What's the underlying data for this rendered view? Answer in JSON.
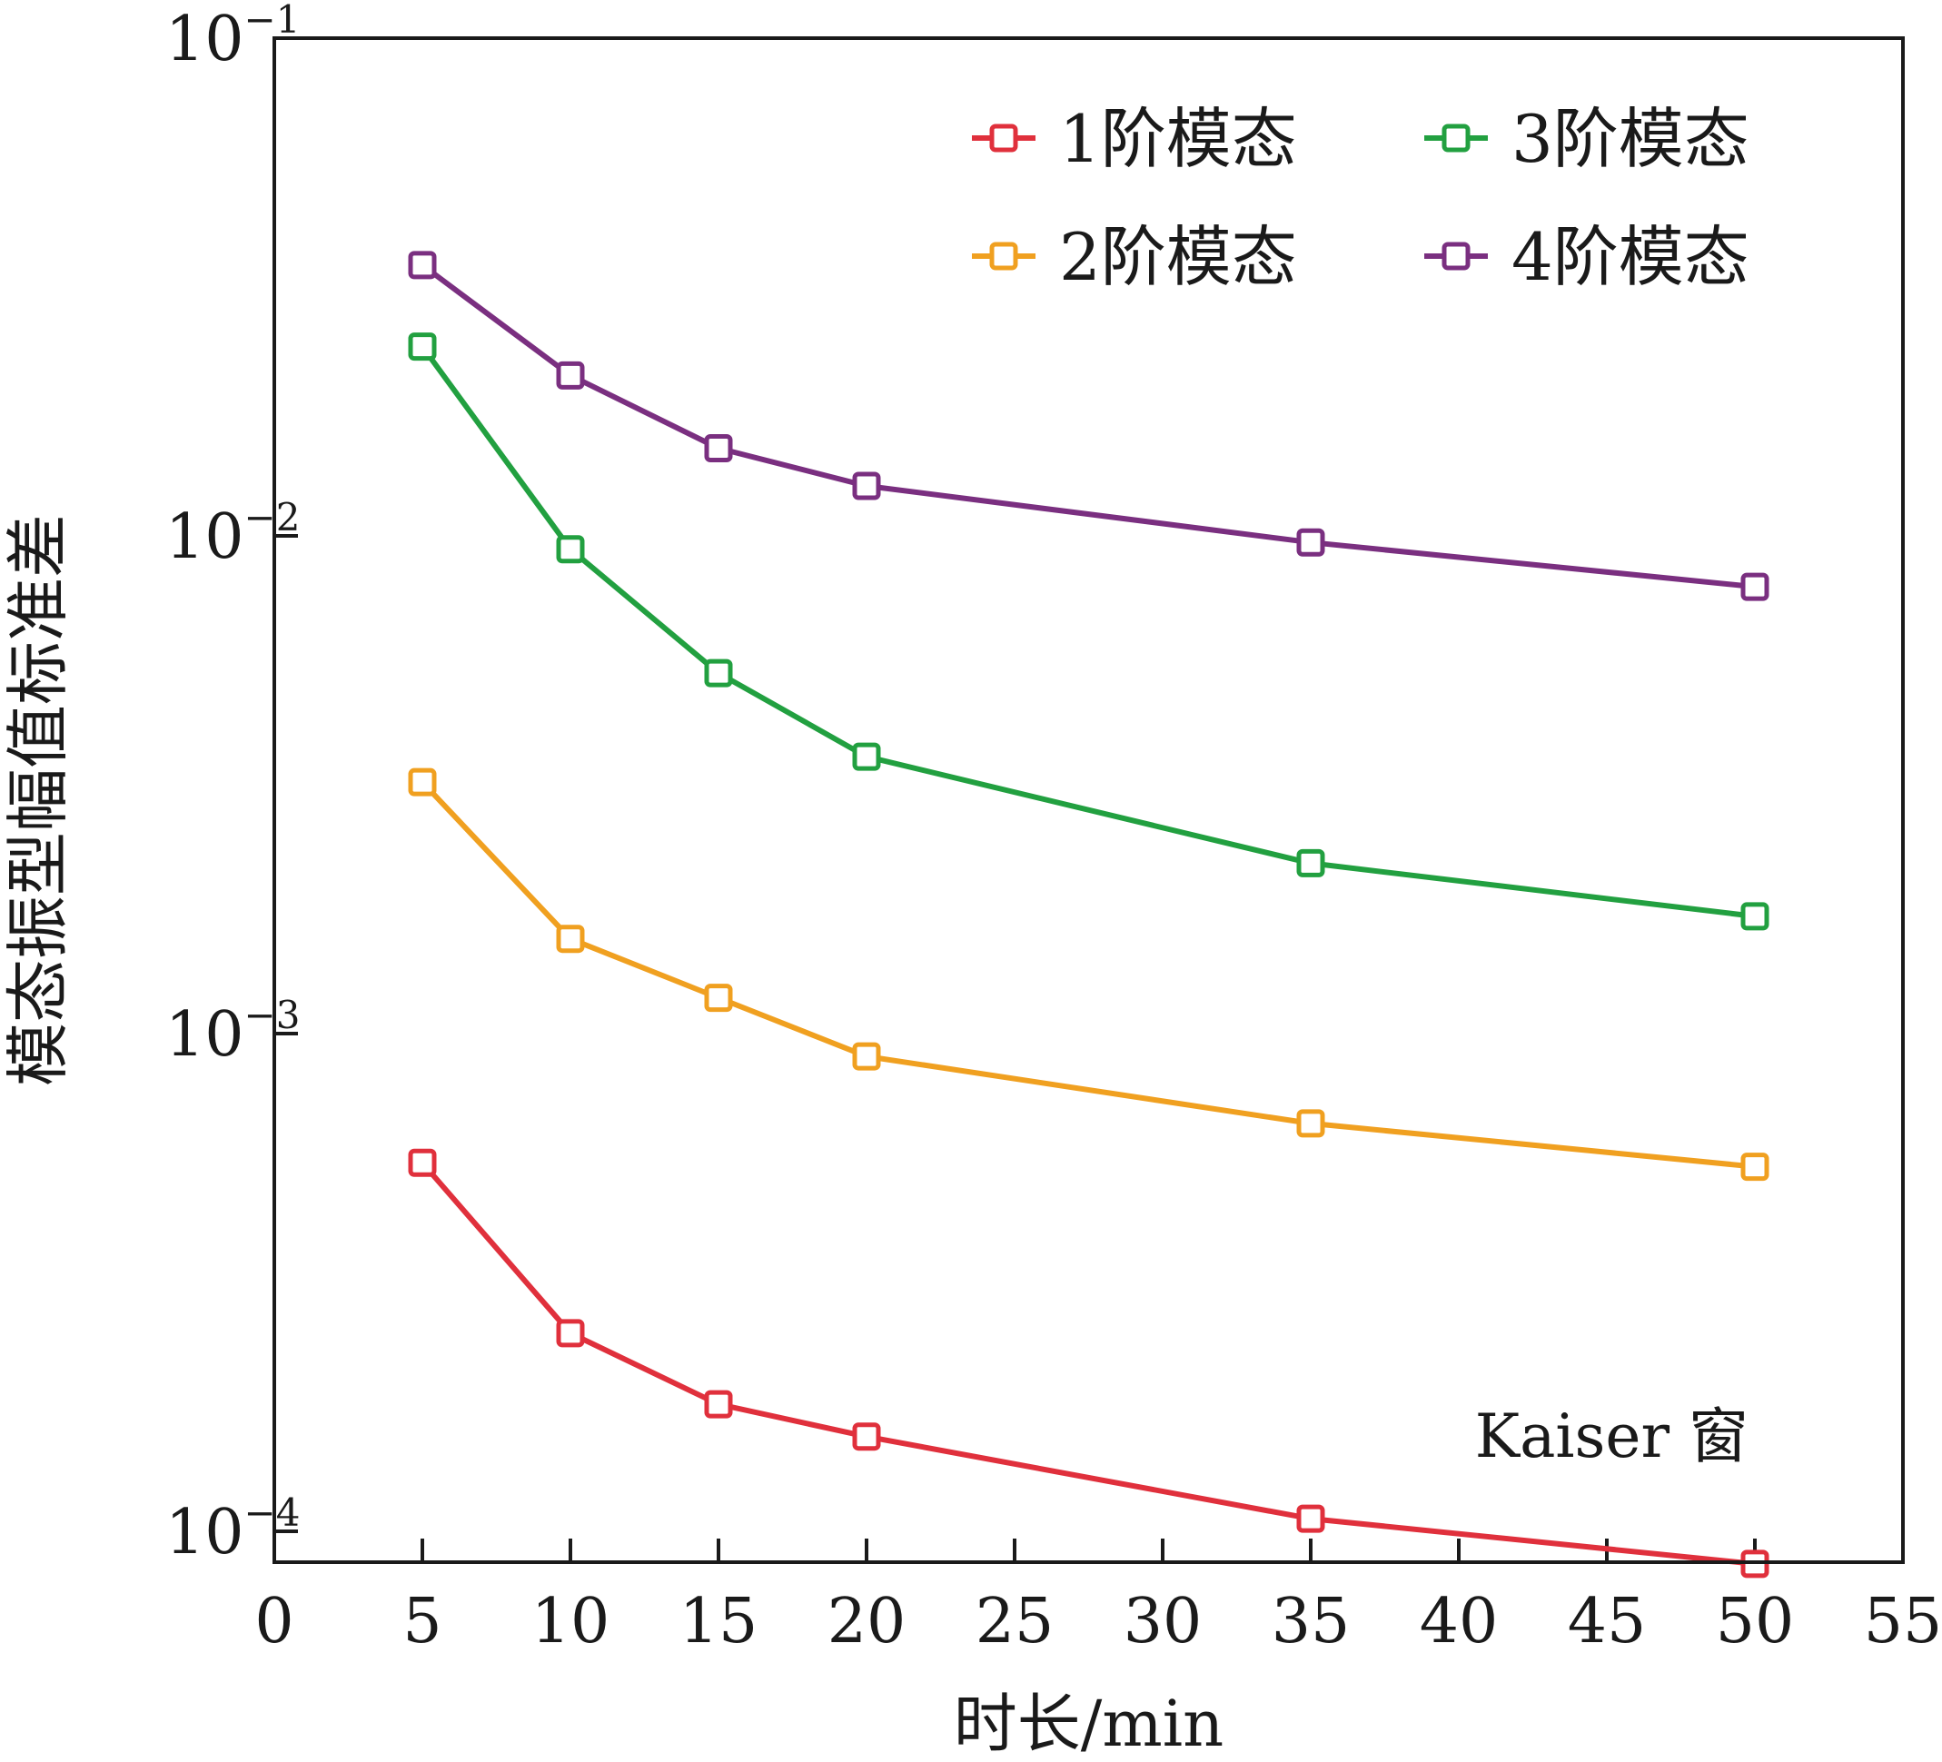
{
  "chart_data": {
    "type": "line",
    "xlabel": "时长/min",
    "ylabel": "模态振型幅值标准差",
    "xlim": [
      0,
      55
    ],
    "ylim": [
      0.0001,
      0.1
    ],
    "yscale": "log",
    "x_ticks": [
      "0",
      "5",
      "10",
      "15",
      "20",
      "25",
      "30",
      "35",
      "40",
      "45",
      "50",
      "55"
    ],
    "y_ticks": [
      {
        "base": "10",
        "exp": "−1",
        "value": 0.1
      },
      {
        "base": "10",
        "exp": "−2",
        "value": 0.01
      },
      {
        "base": "10",
        "exp": "−3",
        "value": 0.001
      },
      {
        "base": "10",
        "exp": "−4",
        "value": 0.0001
      }
    ],
    "annotation": "Kaiser 窗",
    "legend_position": "top-right",
    "x": [
      5,
      10,
      15,
      20,
      35,
      50
    ],
    "series": [
      {
        "name": "1阶模态",
        "color": "#e0303c",
        "values": [
          0.00055,
          0.00025,
          0.00018,
          0.000155,
          0.000106,
          8.6e-05
        ]
      },
      {
        "name": "2阶模态",
        "color": "#f0a020",
        "values": [
          0.0032,
          0.00155,
          0.00118,
          0.0009,
          0.00066,
          0.00054
        ]
      },
      {
        "name": "3阶模态",
        "color": "#22a040",
        "values": [
          0.024,
          0.0094,
          0.0053,
          0.0036,
          0.0022,
          0.00172
        ]
      },
      {
        "name": "4阶模态",
        "color": "#7a2f80",
        "values": [
          0.035,
          0.021,
          0.015,
          0.0126,
          0.0097,
          0.0079
        ]
      }
    ]
  }
}
